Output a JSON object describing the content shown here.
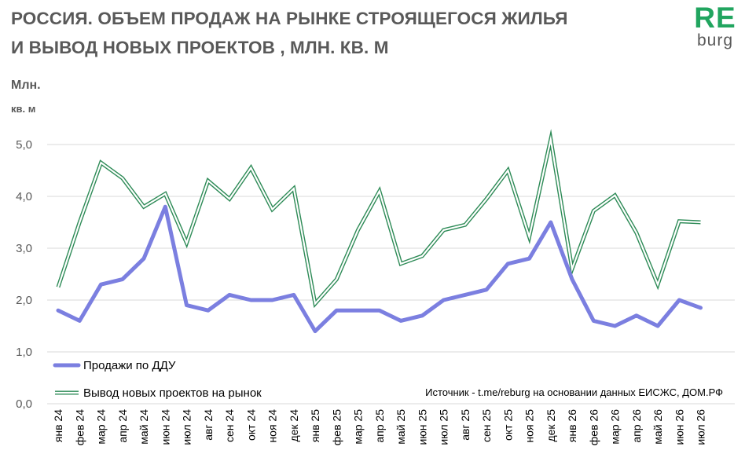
{
  "header": {
    "title_line1": "РОССИЯ. ОБЪЕМ ПРОДАЖ НА РЫНКЕ СТРОЯЩЕГОСЯ ЖИЛЬЯ",
    "title_line2": "И  ВЫВОД НОВЫХ ПРОЕКТОВ , МЛН. КВ. М"
  },
  "logo": {
    "part1": "RE",
    "part2": "burg",
    "color_primary": "#21a55f",
    "color_secondary": "#595959"
  },
  "chart_data": {
    "type": "line",
    "ylabel_line1": "Млн.",
    "ylabel_line2": "кв. м",
    "ylim": [
      0,
      5
    ],
    "yticks": [
      "0,0",
      "1,0",
      "2,0",
      "3,0",
      "4,0",
      "5,0"
    ],
    "grid": true,
    "categories": [
      "янв 24",
      "фев 24",
      "мар 24",
      "апр 24",
      "май 24",
      "июн 24",
      "июл 24",
      "авг 24",
      "сен 24",
      "окт 24",
      "ноя 24",
      "дек 24",
      "янв 25",
      "фев 25",
      "мар 25",
      "апр 25",
      "май 25",
      "июн 25",
      "июл 25",
      "авг 25",
      "сен 25",
      "окт 25",
      "ноя 25",
      "дек 25",
      "янв 26",
      "фев 26",
      "мар 26",
      "апр 26",
      "май 26",
      "июн 26",
      "июл 26"
    ],
    "series": [
      {
        "name": "Продажи по ДДУ",
        "color": "#7b7fe0",
        "style": "thick",
        "values": [
          1.8,
          1.6,
          2.3,
          2.4,
          2.8,
          3.8,
          1.9,
          1.8,
          2.1,
          2.0,
          2.0,
          2.1,
          1.4,
          1.8,
          1.8,
          1.8,
          1.6,
          1.7,
          2.0,
          2.1,
          2.2,
          2.7,
          2.8,
          3.5,
          2.4,
          1.6,
          1.5,
          1.7,
          1.5,
          2.0,
          1.85
        ]
      },
      {
        "name": "Вывод новых проектов на рынок",
        "color": "#2e8b57",
        "style": "double",
        "values": [
          2.25,
          3.5,
          4.65,
          4.35,
          3.8,
          4.05,
          3.1,
          4.3,
          3.95,
          4.55,
          3.75,
          4.15,
          1.93,
          2.4,
          3.35,
          4.1,
          2.7,
          2.85,
          3.35,
          3.45,
          3.95,
          4.5,
          3.22,
          5.1,
          2.6,
          3.72,
          4.02,
          3.3,
          2.3,
          3.52,
          3.5
        ]
      }
    ],
    "legend_placement": "bottom-left",
    "source_note": "Источник - t.me/reburg на основании данных ЕИСЖС, ДОМ.РФ"
  }
}
